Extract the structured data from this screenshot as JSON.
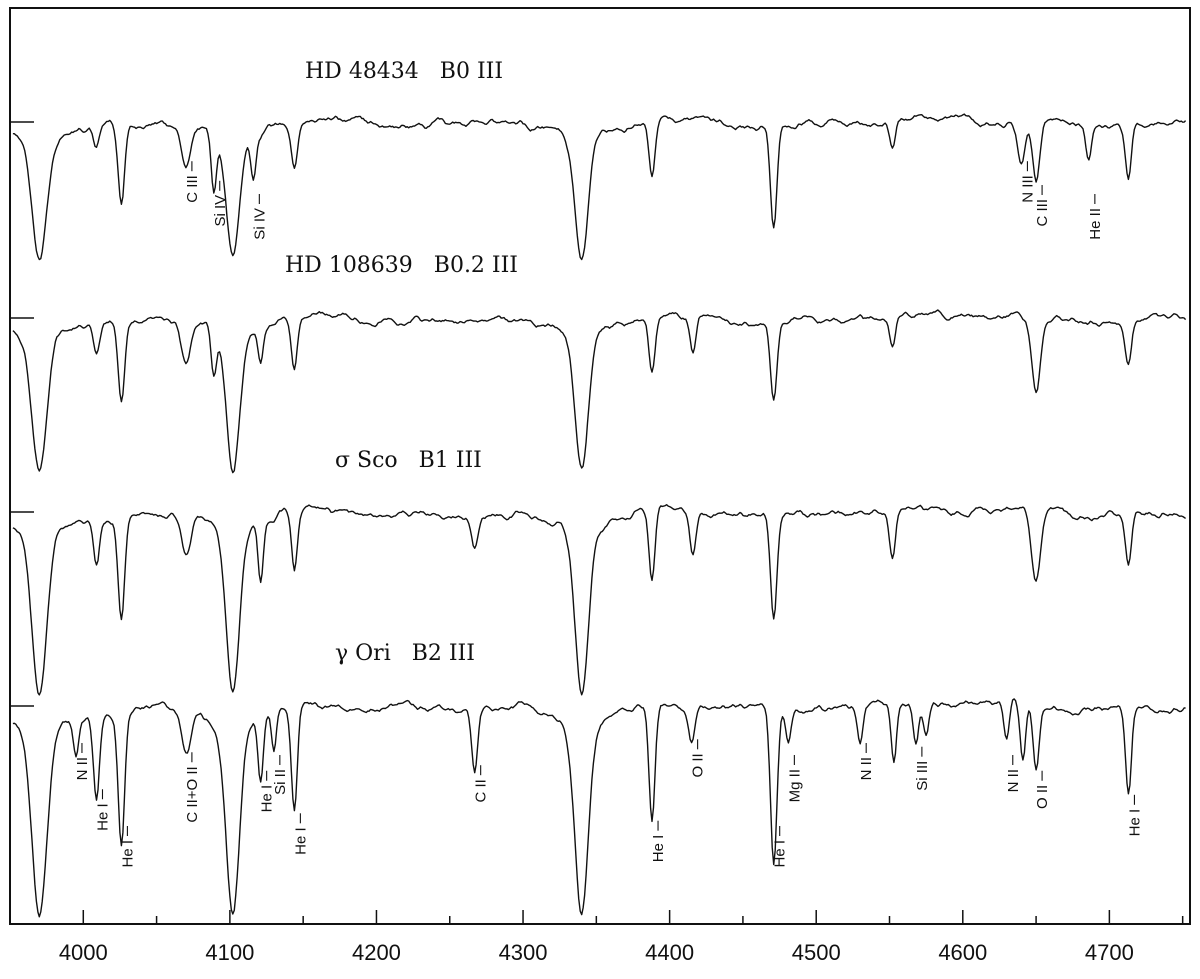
{
  "chart_data": {
    "type": "line",
    "xlim": [
      3950,
      4755
    ],
    "x_ticks": [
      4000,
      4100,
      4200,
      4300,
      4400,
      4500,
      4600,
      4700
    ],
    "x_tick_labels": [
      "4000",
      "4100",
      "4200",
      "4300",
      "4400",
      "4500",
      "4600",
      "4700"
    ],
    "grid": false,
    "legend": "none",
    "series": [
      {
        "name": "HD 48434   B0 III",
        "name_parts": {
          "star": "HD 48434",
          "spectral_type": "B0 III"
        },
        "continuum": 0.0,
        "lines": [
          {
            "wl": 3970,
            "depth": 0.85,
            "w": 5
          },
          {
            "wl": 4009,
            "depth": 0.15,
            "w": 2
          },
          {
            "wl": 4026,
            "depth": 0.58,
            "w": 2.2
          },
          {
            "wl": 4070,
            "depth": 0.28,
            "w": 3
          },
          {
            "wl": 4089,
            "depth": 0.42,
            "w": 1.8
          },
          {
            "wl": 4102,
            "depth": 0.88,
            "w": 4.5
          },
          {
            "wl": 4116,
            "depth": 0.32,
            "w": 1.8
          },
          {
            "wl": 4144,
            "depth": 0.3,
            "w": 2
          },
          {
            "wl": 4340,
            "depth": 0.9,
            "w": 4.5
          },
          {
            "wl": 4388,
            "depth": 0.38,
            "w": 2
          },
          {
            "wl": 4471,
            "depth": 0.72,
            "w": 2.2
          },
          {
            "wl": 4552,
            "depth": 0.2,
            "w": 2
          },
          {
            "wl": 4640,
            "depth": 0.28,
            "w": 2.5
          },
          {
            "wl": 4650,
            "depth": 0.45,
            "w": 2.5
          },
          {
            "wl": 4686,
            "depth": 0.25,
            "w": 2
          },
          {
            "wl": 4713,
            "depth": 0.38,
            "w": 2
          }
        ],
        "annotations": [
          {
            "label": "C III",
            "wl": 4070
          },
          {
            "label": "Si IV",
            "wl": 4089
          },
          {
            "label": "Si IV",
            "wl": 4116
          },
          {
            "label": "N III",
            "wl": 4640
          },
          {
            "label": "C III",
            "wl": 4650
          },
          {
            "label": "He II",
            "wl": 4686
          }
        ]
      },
      {
        "name": "HD 108639   B0.2 III",
        "name_parts": {
          "star": "HD 108639",
          "spectral_type": "B0.2 III"
        },
        "continuum": 0.0,
        "lines": [
          {
            "wl": 3970,
            "depth": 0.92,
            "w": 5
          },
          {
            "wl": 4009,
            "depth": 0.2,
            "w": 2
          },
          {
            "wl": 4026,
            "depth": 0.55,
            "w": 2.2
          },
          {
            "wl": 4070,
            "depth": 0.3,
            "w": 3
          },
          {
            "wl": 4089,
            "depth": 0.35,
            "w": 1.8
          },
          {
            "wl": 4102,
            "depth": 0.95,
            "w": 4.5
          },
          {
            "wl": 4121,
            "depth": 0.25,
            "w": 1.8
          },
          {
            "wl": 4144,
            "depth": 0.35,
            "w": 2
          },
          {
            "wl": 4340,
            "depth": 0.95,
            "w": 4.5
          },
          {
            "wl": 4388,
            "depth": 0.38,
            "w": 2
          },
          {
            "wl": 4416,
            "depth": 0.25,
            "w": 2
          },
          {
            "wl": 4471,
            "depth": 0.55,
            "w": 2.2
          },
          {
            "wl": 4552,
            "depth": 0.2,
            "w": 2
          },
          {
            "wl": 4650,
            "depth": 0.55,
            "w": 3
          },
          {
            "wl": 4713,
            "depth": 0.3,
            "w": 2
          }
        ],
        "annotations": []
      },
      {
        "name": "σ Sco   B1 III",
        "name_parts": {
          "star": "σ Sco",
          "spectral_type": "B1 III"
        },
        "continuum": 0.0,
        "lines": [
          {
            "wl": 3970,
            "depth": 1.0,
            "w": 5
          },
          {
            "wl": 4009,
            "depth": 0.3,
            "w": 2
          },
          {
            "wl": 4026,
            "depth": 0.62,
            "w": 2.2
          },
          {
            "wl": 4070,
            "depth": 0.25,
            "w": 3
          },
          {
            "wl": 4102,
            "depth": 1.0,
            "w": 4.5
          },
          {
            "wl": 4121,
            "depth": 0.38,
            "w": 1.8
          },
          {
            "wl": 4144,
            "depth": 0.38,
            "w": 2
          },
          {
            "wl": 4267,
            "depth": 0.2,
            "w": 2
          },
          {
            "wl": 4340,
            "depth": 1.0,
            "w": 4.5
          },
          {
            "wl": 4388,
            "depth": 0.45,
            "w": 2
          },
          {
            "wl": 4416,
            "depth": 0.25,
            "w": 2
          },
          {
            "wl": 4471,
            "depth": 0.65,
            "w": 2.2
          },
          {
            "wl": 4552,
            "depth": 0.28,
            "w": 2
          },
          {
            "wl": 4650,
            "depth": 0.45,
            "w": 3
          },
          {
            "wl": 4713,
            "depth": 0.3,
            "w": 2
          }
        ],
        "annotations": []
      },
      {
        "name": "γ Ori   B2 III",
        "name_parts": {
          "star": "γ Ori",
          "spectral_type": "B2 III"
        },
        "continuum": 0.0,
        "lines": [
          {
            "wl": 3970,
            "depth": 1.0,
            "w": 5
          },
          {
            "wl": 3995,
            "depth": 0.2,
            "w": 1.8
          },
          {
            "wl": 4009,
            "depth": 0.45,
            "w": 2
          },
          {
            "wl": 4026,
            "depth": 0.72,
            "w": 2.2
          },
          {
            "wl": 4070,
            "depth": 0.25,
            "w": 3
          },
          {
            "wl": 4102,
            "depth": 1.0,
            "w": 4.5
          },
          {
            "wl": 4121,
            "depth": 0.35,
            "w": 1.8
          },
          {
            "wl": 4130,
            "depth": 0.22,
            "w": 1.6
          },
          {
            "wl": 4144,
            "depth": 0.58,
            "w": 2
          },
          {
            "wl": 4267,
            "depth": 0.32,
            "w": 2
          },
          {
            "wl": 4340,
            "depth": 1.0,
            "w": 4.5
          },
          {
            "wl": 4388,
            "depth": 0.62,
            "w": 2
          },
          {
            "wl": 4415,
            "depth": 0.18,
            "w": 2
          },
          {
            "wl": 4471,
            "depth": 0.85,
            "w": 2.2
          },
          {
            "wl": 4481,
            "depth": 0.18,
            "w": 1.8
          },
          {
            "wl": 4530,
            "depth": 0.2,
            "w": 1.8
          },
          {
            "wl": 4553,
            "depth": 0.32,
            "w": 1.8
          },
          {
            "wl": 4568,
            "depth": 0.22,
            "w": 1.8
          },
          {
            "wl": 4575,
            "depth": 0.18,
            "w": 1.8
          },
          {
            "wl": 4630,
            "depth": 0.2,
            "w": 1.8
          },
          {
            "wl": 4641,
            "depth": 0.32,
            "w": 1.8
          },
          {
            "wl": 4650,
            "depth": 0.35,
            "w": 2
          },
          {
            "wl": 4713,
            "depth": 0.48,
            "w": 2
          }
        ],
        "annotations": [
          {
            "label": "N II",
            "wl": 3995
          },
          {
            "label": "He I",
            "wl": 4009
          },
          {
            "label": "He I",
            "wl": 4026
          },
          {
            "label": "C II+O II",
            "wl": 4070
          },
          {
            "label": "He I",
            "wl": 4121
          },
          {
            "label": "Si II",
            "wl": 4130
          },
          {
            "label": "He I",
            "wl": 4144
          },
          {
            "label": "C II",
            "wl": 4267
          },
          {
            "label": "He I",
            "wl": 4388
          },
          {
            "label": "O II",
            "wl": 4415
          },
          {
            "label": "He I",
            "wl": 4471
          },
          {
            "label": "Mg II",
            "wl": 4481
          },
          {
            "label": "N II",
            "wl": 4530
          },
          {
            "label": "Si III",
            "wl": 4568
          },
          {
            "label": "N II",
            "wl": 4630
          },
          {
            "label": "O II",
            "wl": 4650
          },
          {
            "label": "He I",
            "wl": 4713
          }
        ]
      }
    ]
  }
}
